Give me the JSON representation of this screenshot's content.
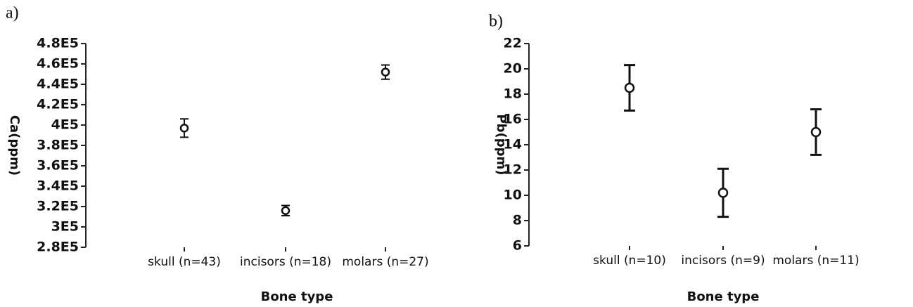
{
  "chart_data": [
    {
      "type": "errorbar",
      "panel": "a)",
      "ylabel": "Ca(ppm)",
      "xlabel": "Bone type",
      "categories": [
        "skull (n=43)",
        "incisors (n=18)",
        "molars (n=27)"
      ],
      "values": [
        397000,
        316000,
        452000
      ],
      "errors": [
        9000,
        5000,
        7000
      ],
      "ylim": [
        280000,
        480000
      ],
      "yticks": [
        {
          "value": 280000,
          "label": "2.8E5"
        },
        {
          "value": 300000,
          "label": "3E5"
        },
        {
          "value": 320000,
          "label": "3.2E5"
        },
        {
          "value": 340000,
          "label": "3.4E5"
        },
        {
          "value": 360000,
          "label": "3.6E5"
        },
        {
          "value": 380000,
          "label": "3.8E5"
        },
        {
          "value": 400000,
          "label": "4E5"
        },
        {
          "value": 420000,
          "label": "4.2E5"
        },
        {
          "value": 440000,
          "label": "4.4E5"
        },
        {
          "value": 460000,
          "label": "4.6E5"
        },
        {
          "value": 480000,
          "label": "4.8E5"
        }
      ]
    },
    {
      "type": "errorbar",
      "panel": "b)",
      "ylabel": "Pb(ppm)",
      "xlabel": "Bone type",
      "categories": [
        "skull (n=10)",
        "incisors (n=9)",
        "molars (n=11)"
      ],
      "values": [
        18.5,
        10.2,
        15
      ],
      "errors": [
        1.8,
        1.9,
        1.8
      ],
      "ylim": [
        6,
        22
      ],
      "yticks": [
        6,
        8,
        10,
        12,
        14,
        16,
        18,
        20,
        22
      ]
    }
  ]
}
